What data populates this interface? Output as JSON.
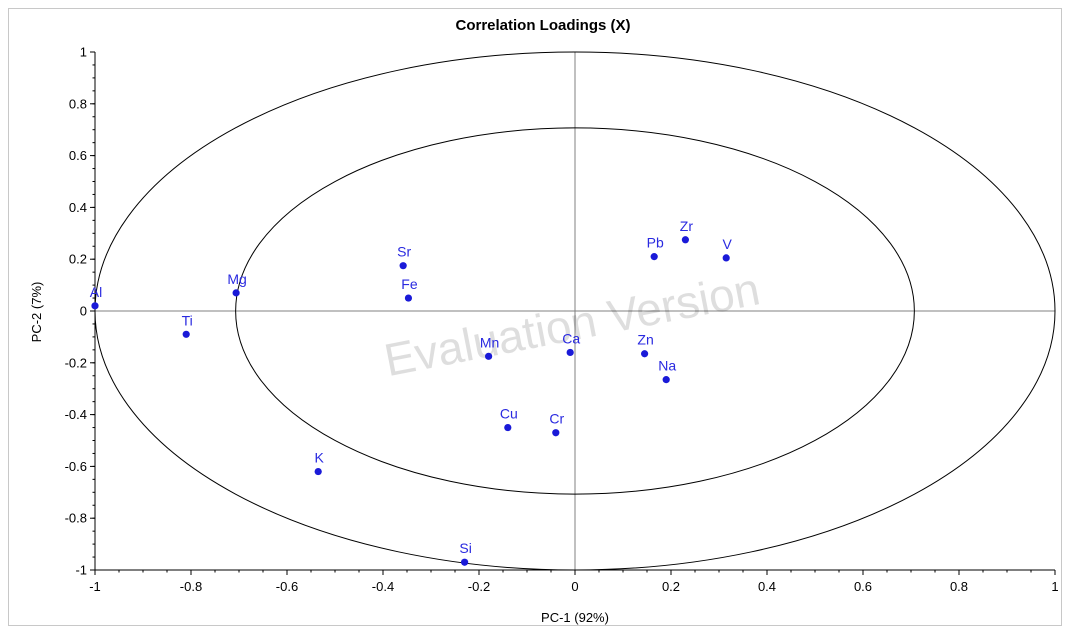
{
  "chart_data": {
    "type": "scatter",
    "title": "Correlation Loadings (X)",
    "xlabel": "PC-1 (92%)",
    "ylabel": "PC-2 (7%)",
    "xlim": [
      -1,
      1
    ],
    "ylim": [
      -1,
      1
    ],
    "xticks": [
      "-1",
      "-0.8",
      "-0.6",
      "-0.4",
      "-0.2",
      "0",
      "0.2",
      "0.4",
      "0.6",
      "0.8",
      "1"
    ],
    "yticks": [
      "1",
      "0.8",
      "0.6",
      "0.4",
      "0.2",
      "0",
      "-0.2",
      "-0.4",
      "-0.6",
      "-0.8",
      "-1"
    ],
    "circles": [
      1.0,
      0.707
    ],
    "points": [
      {
        "label": "Al",
        "x": -1.0,
        "y": 0.02
      },
      {
        "label": "Ti",
        "x": -0.81,
        "y": -0.09
      },
      {
        "label": "Mg",
        "x": -0.706,
        "y": 0.07
      },
      {
        "label": "Sr",
        "x": -0.358,
        "y": 0.175
      },
      {
        "label": "Fe",
        "x": -0.347,
        "y": 0.05
      },
      {
        "label": "Mn",
        "x": -0.18,
        "y": -0.175
      },
      {
        "label": "Ca",
        "x": -0.01,
        "y": -0.16
      },
      {
        "label": "Cu",
        "x": -0.14,
        "y": -0.45
      },
      {
        "label": "Cr",
        "x": -0.04,
        "y": -0.47
      },
      {
        "label": "K",
        "x": -0.535,
        "y": -0.62
      },
      {
        "label": "Si",
        "x": -0.23,
        "y": -0.97
      },
      {
        "label": "Pb",
        "x": 0.165,
        "y": 0.21
      },
      {
        "label": "Zr",
        "x": 0.23,
        "y": 0.275
      },
      {
        "label": "V",
        "x": 0.315,
        "y": 0.205
      },
      {
        "label": "Zn",
        "x": 0.145,
        "y": -0.165
      },
      {
        "label": "Na",
        "x": 0.19,
        "y": -0.265
      }
    ],
    "point_color": "#1a1ad8",
    "watermark": "Evaluation Version"
  }
}
